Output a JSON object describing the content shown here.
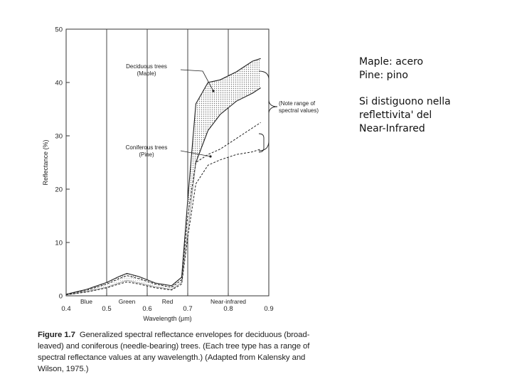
{
  "slide": {
    "notes": {
      "line1": "Maple: acero\nPine: pino",
      "line2": "Si distiguono nella\nreflettivita' del\nNear-Infrared"
    },
    "caption": {
      "label": "Figure 1.7",
      "text": "Generalized spectral reflectance envelopes for deciduous (broad-leaved) and coniferous (needle-bearing) trees. (Each tree type has a range of spectral reflectance values at any wavelength.) (Adapted from Kalensky and Wilson, 1975.)"
    }
  },
  "chart_data": {
    "type": "area",
    "title": "",
    "xlabel": "Wavelength (μm)",
    "ylabel": "Reflectance (%)",
    "xlim": [
      0.4,
      0.9
    ],
    "ylim": [
      0,
      50
    ],
    "xticks": [
      0.4,
      0.5,
      0.6,
      0.7,
      0.8,
      0.9
    ],
    "xtick_labels": [
      "0.4",
      "0.5",
      "0.6",
      "0.7",
      "0.8",
      "0.9"
    ],
    "yticks": [
      0,
      10,
      20,
      30,
      40,
      50
    ],
    "ytick_labels": [
      "0",
      "10",
      "20",
      "30",
      "40",
      "50"
    ],
    "vertical_grid": [
      0.5,
      0.6,
      0.7,
      0.8
    ],
    "band_labels": [
      {
        "text": "Blue",
        "x": 0.45
      },
      {
        "text": "Green",
        "x": 0.55
      },
      {
        "text": "Red",
        "x": 0.65
      },
      {
        "text": "Near-infrared",
        "x": 0.8
      }
    ],
    "annotations": {
      "deciduous": "Deciduous trees\n(Maple)",
      "coniferous": "Coniferous trees\n(Pine)",
      "note": "(Note range of\nspectral values)"
    },
    "series": [
      {
        "name": "Deciduous trees (Maple)",
        "style": "solid-shaded",
        "x": [
          0.4,
          0.45,
          0.5,
          0.53,
          0.55,
          0.58,
          0.62,
          0.66,
          0.685,
          0.7,
          0.72,
          0.75,
          0.78,
          0.82,
          0.86,
          0.88
        ],
        "upper": [
          0.3,
          1.2,
          2.5,
          3.6,
          4.2,
          3.6,
          2.4,
          1.9,
          3.5,
          18,
          36,
          40,
          40.5,
          42,
          44,
          44.5
        ],
        "lower": [
          0.2,
          0.8,
          1.6,
          2.4,
          2.9,
          2.4,
          1.7,
          1.2,
          2.5,
          12,
          25,
          31,
          34,
          36.5,
          38,
          39
        ]
      },
      {
        "name": "Coniferous trees (Pine)",
        "style": "dashed",
        "x": [
          0.4,
          0.45,
          0.5,
          0.53,
          0.55,
          0.58,
          0.62,
          0.66,
          0.685,
          0.7,
          0.72,
          0.75,
          0.78,
          0.82,
          0.86,
          0.88
        ],
        "upper": [
          0.3,
          1.0,
          2.2,
          3.2,
          3.8,
          3.2,
          2.2,
          1.6,
          3.0,
          15,
          25,
          26.5,
          27.5,
          29.5,
          31.5,
          32.5
        ],
        "lower": [
          0.2,
          0.7,
          1.5,
          2.2,
          2.6,
          2.2,
          1.5,
          1.1,
          2.2,
          11,
          21,
          24.5,
          25.5,
          26.5,
          27,
          27.5
        ]
      }
    ]
  }
}
